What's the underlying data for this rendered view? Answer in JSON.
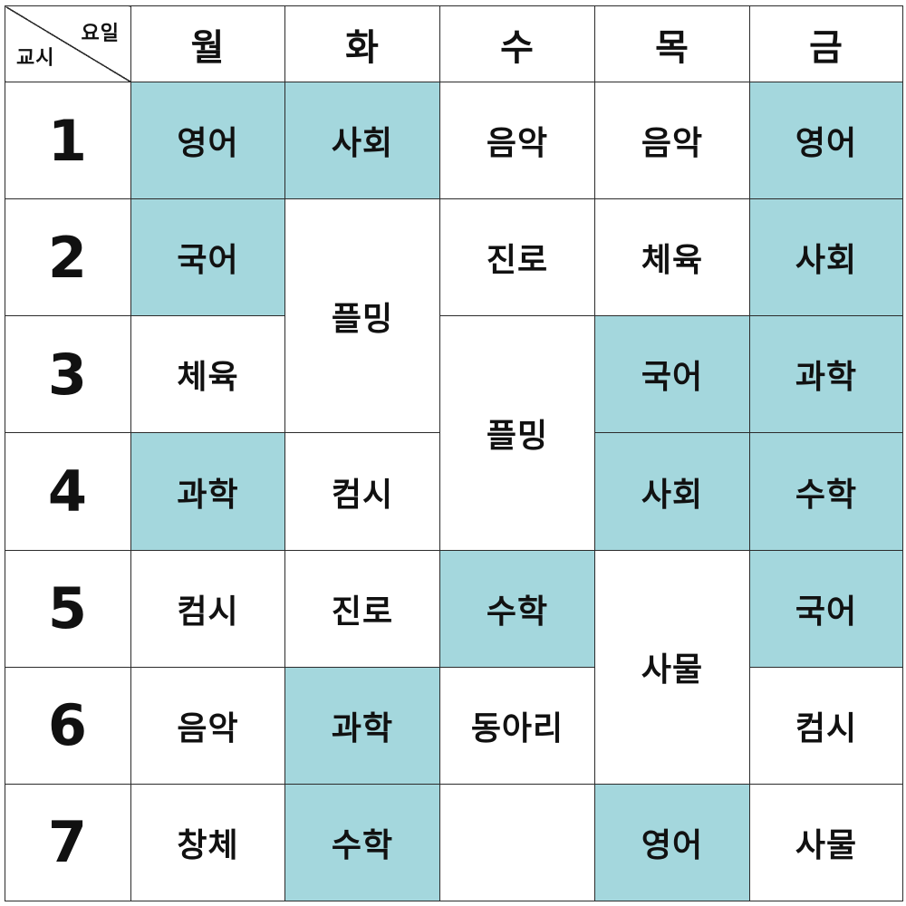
{
  "corner": {
    "top_label": "요일",
    "bottom_label": "교시"
  },
  "days": [
    "월",
    "화",
    "수",
    "목",
    "금"
  ],
  "periods": [
    "1",
    "2",
    "3",
    "4",
    "5",
    "6",
    "7"
  ],
  "rows": [
    [
      "영어",
      "사회",
      "음악",
      "음악",
      "영어"
    ],
    [
      "국어",
      "플밍",
      "진로",
      "체육",
      "사회"
    ],
    [
      "체육",
      null,
      "플밍",
      "국어",
      "과학"
    ],
    [
      "과학",
      "컴시",
      null,
      "사회",
      "수학"
    ],
    [
      "컴시",
      "진로",
      "수학",
      "사물",
      "국어"
    ],
    [
      "음악",
      "과학",
      "동아리",
      null,
      "컴시"
    ],
    [
      "창체",
      "수학",
      "",
      "영어",
      "사물"
    ]
  ],
  "colors": {
    "highlight": "#a4d7dd",
    "border": "#2b2b2b",
    "text": "#111111"
  }
}
